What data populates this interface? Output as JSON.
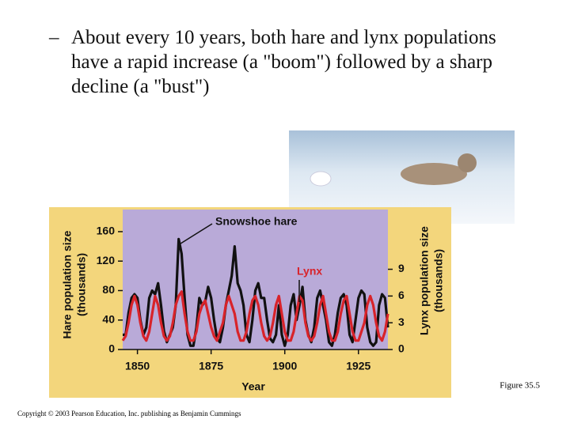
{
  "bullet_marker": "–",
  "bullet": "About every 10 years, both hare and lynx populations have a rapid increase (a \"boom\") followed by a sharp decline (a \"bust\")",
  "figure_label": "Figure 35.5",
  "copyright": "Copyright © 2003 Pearson Education, Inc. publishing as Benjamin Cummings",
  "chart_data": {
    "type": "line",
    "xlabel": "Year",
    "ylabel": [
      "Hare population size",
      "(thousands)"
    ],
    "y2label": [
      "Lynx population size",
      "(thousands)"
    ],
    "x": [
      1845,
      1846,
      1847,
      1848,
      1849,
      1850,
      1851,
      1852,
      1853,
      1854,
      1855,
      1856,
      1857,
      1858,
      1859,
      1860,
      1861,
      1862,
      1863,
      1864,
      1865,
      1866,
      1867,
      1868,
      1869,
      1870,
      1871,
      1872,
      1873,
      1874,
      1875,
      1876,
      1877,
      1878,
      1879,
      1880,
      1881,
      1882,
      1883,
      1884,
      1885,
      1886,
      1887,
      1888,
      1889,
      1890,
      1891,
      1892,
      1893,
      1894,
      1895,
      1896,
      1897,
      1898,
      1899,
      1900,
      1901,
      1902,
      1903,
      1904,
      1905,
      1906,
      1907,
      1908,
      1909,
      1910,
      1911,
      1912,
      1913,
      1914,
      1915,
      1916,
      1917,
      1918,
      1919,
      1920,
      1921,
      1922,
      1923,
      1924,
      1925,
      1926,
      1927,
      1928,
      1929,
      1930,
      1931,
      1932,
      1933,
      1934,
      1935
    ],
    "series": [
      {
        "name": "Snowshoe hare",
        "color": "#111111",
        "values": [
          20,
          20,
          50,
          70,
          75,
          70,
          40,
          20,
          30,
          70,
          80,
          75,
          90,
          60,
          25,
          10,
          20,
          30,
          60,
          150,
          130,
          70,
          20,
          5,
          5,
          30,
          70,
          60,
          65,
          85,
          70,
          40,
          15,
          10,
          30,
          60,
          80,
          100,
          140,
          90,
          80,
          60,
          20,
          10,
          40,
          80,
          90,
          70,
          70,
          40,
          15,
          10,
          20,
          60,
          20,
          5,
          20,
          60,
          75,
          40,
          60,
          85,
          40,
          20,
          10,
          30,
          70,
          80,
          60,
          40,
          10,
          5,
          20,
          50,
          70,
          75,
          60,
          20,
          10,
          40,
          70,
          80,
          75,
          30,
          10,
          5,
          10,
          60,
          75,
          70,
          30
        ]
      },
      {
        "name": "Lynx",
        "color": "#d8232a",
        "axis": "y2",
        "values": [
          1,
          1.5,
          3,
          5,
          6,
          5,
          3,
          1.5,
          1,
          2,
          4,
          6,
          5,
          3,
          1.5,
          1,
          1.5,
          3,
          5,
          6,
          6.5,
          4,
          2,
          1,
          1,
          2,
          4,
          5,
          5.5,
          4,
          2.5,
          1.5,
          1,
          2,
          3,
          5,
          6,
          5,
          4,
          2,
          1,
          1,
          2,
          4,
          5.5,
          6,
          5,
          3,
          1.5,
          1,
          1.5,
          3,
          5,
          6,
          4,
          2,
          1,
          1,
          2,
          4,
          6,
          5.5,
          3,
          1.5,
          1,
          1.5,
          3,
          5,
          6,
          4,
          2,
          1,
          1,
          2,
          4,
          5.5,
          6,
          4,
          2,
          1,
          1,
          2,
          3,
          5,
          6,
          5,
          3,
          1.5,
          1,
          2,
          4
        ]
      }
    ],
    "xlim": [
      1845,
      1935
    ],
    "xticks": [
      1850,
      1875,
      1900,
      1925
    ],
    "ylim": [
      0,
      190
    ],
    "yticks": [
      0,
      40,
      80,
      120,
      160
    ],
    "y2lim": [
      0,
      15.7
    ],
    "y2ticks": [
      0,
      3,
      6,
      9
    ],
    "plot_color": "#b9aad8",
    "panel_color": "#f3d67c"
  }
}
